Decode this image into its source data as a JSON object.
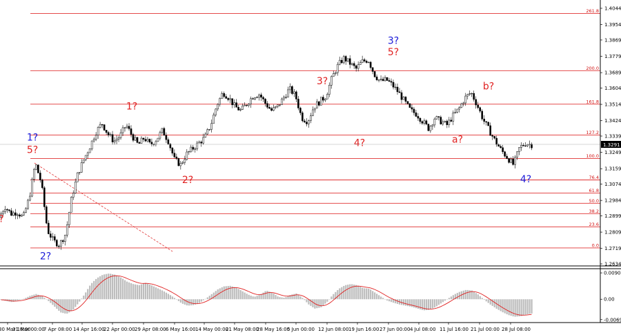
{
  "chart_data": [
    {
      "type": "candlestick",
      "ylim": [
        1.2634,
        1.4044
      ],
      "x_ticks": [
        "30 Mar 16:00",
        "31 Mar 00:00",
        "7 Apr 08:00",
        "14 Apr 16:00",
        "22 Apr 00:00",
        "29 Apr 08:00",
        "6 May 16:00",
        "14 May 00:00",
        "21 May 08:00",
        "28 May 16:00",
        "5 Jun 00:00",
        "12 Jun 08:00",
        "19 Jun 16:00",
        "27 Jun 00:00",
        "4 Jul 08:00",
        "11 Jul 16:00",
        "21 Jul 00:00",
        "28 Jul 08:00"
      ],
      "y_ticks": [
        "1.4044",
        "1.3954",
        "1.3869",
        "1.3779",
        "1.3689",
        "1.3604",
        "1.3514",
        "1.3424",
        "1.3339",
        "1.3249",
        "1.3159",
        "1.3074",
        "1.2984",
        "1.2899",
        "1.2809",
        "1.2719",
        "1.2634"
      ],
      "current_price": "1.3291",
      "close_path": [
        1.289,
        1.295,
        1.291,
        1.292,
        1.289,
        1.3,
        1.319,
        1.308,
        1.282,
        1.276,
        1.274,
        1.28,
        1.3,
        1.313,
        1.321,
        1.328,
        1.336,
        1.341,
        1.335,
        1.331,
        1.334,
        1.34,
        1.334,
        1.329,
        1.333,
        1.329,
        1.332,
        1.337,
        1.331,
        1.321,
        1.318,
        1.324,
        1.327,
        1.33,
        1.333,
        1.34,
        1.351,
        1.358,
        1.355,
        1.35,
        1.348,
        1.352,
        1.356,
        1.357,
        1.352,
        1.348,
        1.35,
        1.355,
        1.36,
        1.356,
        1.344,
        1.342,
        1.35,
        1.353,
        1.356,
        1.366,
        1.373,
        1.377,
        1.374,
        1.371,
        1.375,
        1.376,
        1.368,
        1.364,
        1.365,
        1.362,
        1.358,
        1.353,
        1.348,
        1.346,
        1.342,
        1.338,
        1.344,
        1.342,
        1.34,
        1.345,
        1.349,
        1.355,
        1.358,
        1.351,
        1.343,
        1.337,
        1.331,
        1.326,
        1.322,
        1.318,
        1.3275,
        1.33,
        1.3291
      ],
      "indicator": {
        "y_ticks": [
          "0.00901",
          "0.00",
          "-0.00697"
        ],
        "ylim": [
          -0.0075,
          0.0095
        ],
        "values": [
          -0.0001,
          -0.0006,
          -0.001,
          -0.0004,
          0.0002,
          0.0012,
          0.0018,
          0.001,
          -0.0006,
          -0.0025,
          -0.0045,
          -0.005,
          -0.0038,
          -0.0012,
          0.0018,
          0.0052,
          0.0072,
          0.0084,
          0.0088,
          0.0084,
          0.0074,
          0.006,
          0.0052,
          0.0048,
          0.0056,
          0.0048,
          0.0038,
          0.0028,
          0.0016,
          0.0002,
          -0.0014,
          -0.0022,
          -0.002,
          -0.0012,
          0.0002,
          0.0018,
          0.0034,
          0.0044,
          0.0046,
          0.004,
          0.0028,
          0.0016,
          0.0008,
          0.0016,
          0.003,
          0.0022,
          0.0008,
          0.0005,
          0.0015,
          0.002,
          0.0004,
          -0.0018,
          -0.0032,
          -0.0028,
          -0.001,
          0.0016,
          0.0036,
          0.0048,
          0.0052,
          0.0048,
          0.0038,
          0.0036,
          0.0022,
          0.0008,
          -0.0005,
          -0.0012,
          -0.0018,
          -0.0022,
          -0.0026,
          -0.0032,
          -0.0038,
          -0.0036,
          -0.0026,
          -0.0012,
          0.0002,
          0.0016,
          0.0026,
          0.0032,
          0.003,
          0.0016,
          -0.0002,
          -0.0018,
          -0.0032,
          -0.0044,
          -0.0054,
          -0.006,
          -0.0058,
          -0.0052,
          -0.0048
        ]
      },
      "fib_levels": [
        {
          "label": "261.8",
          "value": 1.4015
        },
        {
          "label": "200.0",
          "value": 1.37
        },
        {
          "label": "161.8",
          "value": 1.3515
        },
        {
          "label": "127.2",
          "value": 1.3345
        },
        {
          "label": "100.0",
          "value": 1.3215
        },
        {
          "label": "76.4",
          "value": 1.3097
        },
        {
          "label": "61.8",
          "value": 1.3025
        },
        {
          "label": "50.0",
          "value": 1.2968
        },
        {
          "label": "38.2",
          "value": 1.2911
        },
        {
          "label": "23.6",
          "value": 1.2838
        },
        {
          "label": "0.0",
          "value": 1.2722
        }
      ],
      "wave_labels": [
        {
          "text": "?",
          "color": "#e02020",
          "x": 2,
          "y": 1.2865
        },
        {
          "text": "1?",
          "color": "#1a1ad8",
          "x": 47,
          "y": 1.3315
        },
        {
          "text": "5?",
          "color": "#e02020",
          "x": 47,
          "y": 1.3245
        },
        {
          "text": "2?",
          "color": "#1a1ad8",
          "x": 66,
          "y": 1.2658
        },
        {
          "text": "1?",
          "color": "#e02020",
          "x": 191,
          "y": 1.3485
        },
        {
          "text": "2?",
          "color": "#e02020",
          "x": 272,
          "y": 1.3079
        },
        {
          "text": "3?",
          "color": "#e02020",
          "x": 467,
          "y": 1.3625
        },
        {
          "text": "4?",
          "color": "#e02020",
          "x": 521,
          "y": 1.3283
        },
        {
          "text": "3?",
          "color": "#1a1ad8",
          "x": 570,
          "y": 1.3848
        },
        {
          "text": "5?",
          "color": "#e02020",
          "x": 570,
          "y": 1.3784
        },
        {
          "text": "a?",
          "color": "#e02020",
          "x": 663,
          "y": 1.3303
        },
        {
          "text": "b?",
          "color": "#e02020",
          "x": 708,
          "y": 1.3597
        },
        {
          "text": "4?",
          "color": "#1a1ad8",
          "x": 762,
          "y": 1.3083
        }
      ]
    }
  ]
}
